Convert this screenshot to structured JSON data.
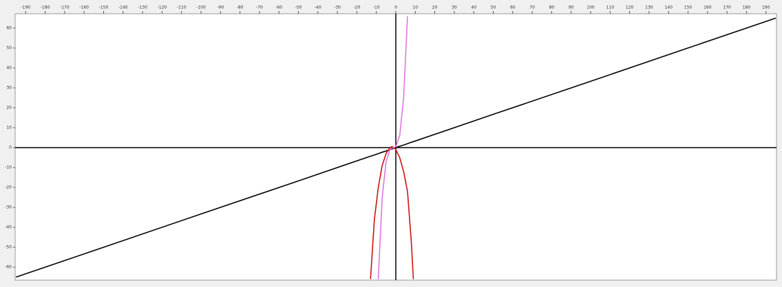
{
  "chart_data": {
    "type": "line",
    "x": [
      -195,
      -150,
      -100,
      -50,
      -13,
      -11,
      -9,
      -7,
      -5,
      -3,
      -2,
      -1,
      0,
      2,
      4,
      6,
      8,
      9,
      50,
      100,
      150,
      195
    ],
    "series": [
      {
        "color": "#000000",
        "values": [
          -65,
          -50,
          -33.3,
          -16.7,
          -4.3,
          -3.7,
          -3,
          -2.3,
          -1.7,
          -1,
          -0.7,
          -0.3,
          0,
          0.7,
          1.3,
          2,
          2.7,
          3,
          16.7,
          33.3,
          50,
          65
        ]
      },
      {
        "color": "#cc1111",
        "values": [
          null,
          null,
          null,
          null,
          -66,
          -36,
          -20,
          -9,
          -3,
          0,
          0.5,
          0,
          -1,
          -5,
          -12,
          -22,
          -48,
          -66,
          null,
          null,
          null,
          null
        ]
      },
      {
        "color": "#dd77dd",
        "values": [
          null,
          null,
          null,
          null,
          null,
          null,
          -66,
          -25,
          -7,
          -1,
          -0.3,
          0,
          0.5,
          6,
          25,
          66,
          null,
          null,
          null,
          null,
          null,
          null
        ]
      }
    ],
    "xlim": [
      -195.4,
      195.4
    ],
    "ylim": [
      -66.5,
      67.2
    ],
    "xticks": [
      -190,
      -180,
      -170,
      -160,
      -150,
      -140,
      -130,
      -120,
      -110,
      -100,
      -90,
      -80,
      -70,
      -60,
      -50,
      -40,
      -30,
      -20,
      -10,
      0,
      10,
      20,
      30,
      40,
      50,
      60,
      70,
      80,
      90,
      100,
      110,
      120,
      130,
      140,
      150,
      160,
      170,
      180,
      190
    ],
    "yticks": [
      -60,
      -50,
      -40,
      -30,
      -20,
      -10,
      0,
      10,
      20,
      30,
      40,
      50,
      60
    ]
  }
}
